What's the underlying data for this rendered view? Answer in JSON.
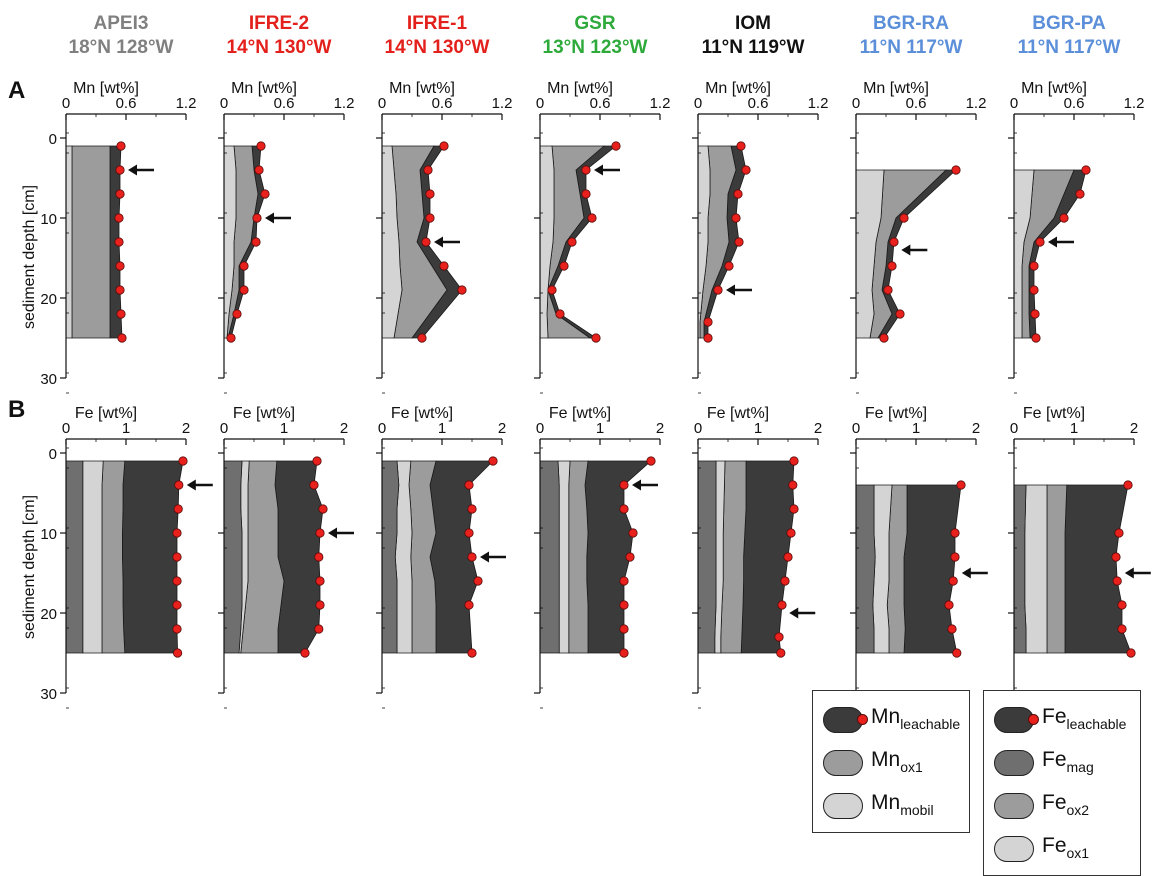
{
  "colors": {
    "leachable": "#3b3b3b",
    "ox": "#9c9c9c",
    "mobil": "#d4d4d4",
    "fe_mag": "#6f6f6f",
    "dot": "#e8211c"
  },
  "panel_labels": {
    "a": "A",
    "b": "B"
  },
  "y_axis_label": "sediment depth [cm]",
  "legend_mn": [
    {
      "base": "Mn",
      "sub": "leachable",
      "icon": "leachable-swatch-icon",
      "color": "#3b3b3b"
    },
    {
      "base": "Mn",
      "sub": "ox1",
      "icon": "ox1-swatch-icon",
      "color": "#9c9c9c"
    },
    {
      "base": "Mn",
      "sub": "mobil",
      "icon": "mobil-swatch-icon",
      "color": "#d4d4d4"
    }
  ],
  "legend_fe": [
    {
      "base": "Fe",
      "sub": "leachable",
      "icon": "leachable-swatch-icon",
      "color": "#3b3b3b"
    },
    {
      "base": "Fe",
      "sub": "mag",
      "icon": "mag-swatch-icon",
      "color": "#6f6f6f"
    },
    {
      "base": "Fe",
      "sub": "ox2",
      "icon": "ox2-swatch-icon",
      "color": "#9c9c9c"
    },
    {
      "base": "Fe",
      "sub": "ox1",
      "icon": "ox1-swatch-icon",
      "color": "#d4d4d4"
    }
  ],
  "chart_data": [
    {
      "type": "area",
      "panel": "A",
      "xlabel": "Mn [wt%]",
      "ylabel": "sediment depth [cm]",
      "xlim": [
        0,
        1.2
      ],
      "xticks": [
        "0",
        "0.6",
        "1.2"
      ],
      "ylim": [
        0,
        30
      ],
      "yticks": [
        "0",
        "10",
        "20",
        "30"
      ],
      "y_inverted": true,
      "sites": [
        {
          "name": "APEI3",
          "coords": "18°N 128°W",
          "color": "#808080",
          "depth": [
            1,
            4,
            7,
            10,
            13,
            16,
            19,
            22,
            25
          ],
          "mobil": [
            0.06,
            0.06,
            0.06,
            0.06,
            0.06,
            0.06,
            0.06,
            0.06,
            0.06
          ],
          "ox1": [
            0.44,
            0.44,
            0.44,
            0.44,
            0.44,
            0.44,
            0.44,
            0.44,
            0.44
          ],
          "leachable": [
            0.55,
            0.54,
            0.54,
            0.53,
            0.53,
            0.54,
            0.54,
            0.55,
            0.56
          ],
          "arrow_depth": 4
        },
        {
          "name": "IFRE-2",
          "coords": "14°N 130°W",
          "color": "#e3201b",
          "depth": [
            1,
            4,
            7,
            10,
            13,
            16,
            19,
            22,
            25
          ],
          "mobil": [
            0.1,
            0.12,
            0.12,
            0.12,
            0.1,
            0.1,
            0.08,
            0.05,
            0.03
          ],
          "ox1": [
            0.28,
            0.3,
            0.34,
            0.3,
            0.27,
            0.15,
            0.15,
            0.1,
            0.04
          ],
          "leachable": [
            0.37,
            0.35,
            0.41,
            0.33,
            0.32,
            0.2,
            0.2,
            0.13,
            0.07
          ],
          "arrow_depth": 10
        },
        {
          "name": "IFRE-1",
          "coords": "14°N 130°W",
          "color": "#e3201b",
          "depth": [
            1,
            4,
            7,
            10,
            13,
            16,
            19,
            25
          ],
          "mobil": [
            0.1,
            0.12,
            0.14,
            0.15,
            0.17,
            0.18,
            0.2,
            0.12
          ],
          "ox1": [
            0.52,
            0.38,
            0.4,
            0.42,
            0.35,
            0.5,
            0.65,
            0.3
          ],
          "leachable": [
            0.62,
            0.46,
            0.48,
            0.48,
            0.44,
            0.62,
            0.8,
            0.4
          ],
          "arrow_depth": 13
        },
        {
          "name": "GSR",
          "coords": "13°N 123°W",
          "color": "#2eaa3b",
          "depth": [
            1,
            4,
            7,
            10,
            13,
            16,
            19,
            22,
            25
          ],
          "mobil": [
            0.12,
            0.14,
            0.14,
            0.14,
            0.13,
            0.1,
            0.08,
            0.07,
            0.08
          ],
          "ox1": [
            0.64,
            0.36,
            0.4,
            0.44,
            0.26,
            0.18,
            0.08,
            0.16,
            0.5
          ],
          "leachable": [
            0.76,
            0.46,
            0.46,
            0.52,
            0.32,
            0.24,
            0.12,
            0.2,
            0.56
          ],
          "arrow_depth": 4
        },
        {
          "name": "IOM",
          "coords": "11°N 119°W",
          "color": "#111111",
          "depth": [
            1,
            4,
            7,
            10,
            13,
            16,
            19,
            23,
            25
          ],
          "mobil": [
            0.1,
            0.12,
            0.12,
            0.1,
            0.1,
            0.08,
            0.05,
            0.02,
            0.02
          ],
          "ox1": [
            0.33,
            0.38,
            0.3,
            0.29,
            0.31,
            0.24,
            0.14,
            0.06,
            0.06
          ],
          "leachable": [
            0.43,
            0.48,
            0.4,
            0.38,
            0.41,
            0.31,
            0.2,
            0.1,
            0.1
          ],
          "arrow_depth": 19
        },
        {
          "name": "BGR-RA",
          "coords": "11°N 117°W",
          "color": "#5b8fd9",
          "depth": [
            4,
            10,
            13,
            16,
            19,
            22,
            25
          ],
          "mobil": [
            0.28,
            0.25,
            0.2,
            0.18,
            0.16,
            0.18,
            0.14
          ],
          "ox1": [
            0.9,
            0.4,
            0.32,
            0.3,
            0.26,
            0.36,
            0.22
          ],
          "leachable": [
            1.0,
            0.48,
            0.38,
            0.36,
            0.32,
            0.44,
            0.28
          ],
          "arrow_depth": 14
        },
        {
          "name": "BGR-PA",
          "coords": "11°N 117°W",
          "color": "#5b8fd9",
          "depth": [
            4,
            7,
            10,
            13,
            16,
            19,
            22,
            25
          ],
          "mobil": [
            0.2,
            0.18,
            0.16,
            0.1,
            0.08,
            0.08,
            0.08,
            0.08
          ],
          "ox1": [
            0.6,
            0.5,
            0.4,
            0.2,
            0.15,
            0.15,
            0.15,
            0.16
          ],
          "leachable": [
            0.72,
            0.66,
            0.5,
            0.26,
            0.2,
            0.2,
            0.21,
            0.22
          ],
          "arrow_depth": 13
        }
      ]
    },
    {
      "type": "area",
      "panel": "B",
      "xlabel": "Fe [wt%]",
      "ylabel": "sediment depth [cm]",
      "xlim": [
        0,
        2
      ],
      "xticks": [
        "0",
        "1",
        "2"
      ],
      "ylim": [
        0,
        30
      ],
      "yticks": [
        "0",
        "10",
        "20",
        "30"
      ],
      "y_inverted": true,
      "sites": [
        {
          "name": "APEI3",
          "depth": [
            1,
            4,
            7,
            10,
            13,
            16,
            19,
            22,
            25
          ],
          "mag": [
            0.28,
            0.28,
            0.28,
            0.28,
            0.28,
            0.28,
            0.28,
            0.28,
            0.28
          ],
          "ox1": [
            0.62,
            0.6,
            0.6,
            0.6,
            0.6,
            0.6,
            0.6,
            0.6,
            0.6
          ],
          "ox2": [
            0.98,
            0.95,
            0.95,
            0.94,
            0.94,
            0.95,
            0.95,
            0.96,
            0.98
          ],
          "leachable": [
            1.95,
            1.88,
            1.87,
            1.85,
            1.85,
            1.85,
            1.85,
            1.85,
            1.86
          ],
          "arrow_depth": 4
        },
        {
          "name": "IFRE-2",
          "depth": [
            1,
            4,
            7,
            10,
            13,
            16,
            19,
            22,
            25
          ],
          "mag": [
            0.3,
            0.28,
            0.28,
            0.3,
            0.3,
            0.3,
            0.3,
            0.28,
            0.25
          ],
          "ox1": [
            0.42,
            0.4,
            0.4,
            0.4,
            0.4,
            0.4,
            0.36,
            0.32,
            0.28
          ],
          "ox2": [
            0.88,
            0.85,
            0.9,
            0.9,
            0.9,
            1.0,
            0.95,
            0.9,
            0.9
          ],
          "leachable": [
            1.55,
            1.5,
            1.65,
            1.6,
            1.58,
            1.6,
            1.6,
            1.58,
            1.35
          ],
          "arrow_depth": 10
        },
        {
          "name": "IFRE-1",
          "depth": [
            1,
            4,
            7,
            10,
            13,
            16,
            19,
            25
          ],
          "mag": [
            0.25,
            0.28,
            0.25,
            0.25,
            0.22,
            0.25,
            0.25,
            0.25
          ],
          "ox1": [
            0.48,
            0.45,
            0.48,
            0.5,
            0.48,
            0.5,
            0.5,
            0.5
          ],
          "ox2": [
            0.9,
            0.8,
            0.85,
            0.9,
            0.8,
            0.88,
            0.9,
            0.9
          ],
          "leachable": [
            1.85,
            1.45,
            1.5,
            1.45,
            1.5,
            1.6,
            1.45,
            1.5
          ],
          "arrow_depth": 13
        },
        {
          "name": "GSR",
          "depth": [
            1,
            4,
            7,
            10,
            13,
            16,
            19,
            22,
            25
          ],
          "mag": [
            0.3,
            0.32,
            0.32,
            0.32,
            0.32,
            0.32,
            0.32,
            0.32,
            0.32
          ],
          "ox1": [
            0.5,
            0.48,
            0.48,
            0.48,
            0.48,
            0.48,
            0.48,
            0.48,
            0.48
          ],
          "ox2": [
            0.8,
            0.75,
            0.78,
            0.8,
            0.78,
            0.78,
            0.8,
            0.8,
            0.8
          ],
          "leachable": [
            1.85,
            1.4,
            1.4,
            1.55,
            1.5,
            1.4,
            1.4,
            1.4,
            1.4
          ],
          "arrow_depth": 4
        },
        {
          "name": "IOM",
          "depth": [
            1,
            4,
            7,
            10,
            13,
            16,
            19,
            23,
            25
          ],
          "mag": [
            0.3,
            0.3,
            0.3,
            0.3,
            0.3,
            0.3,
            0.3,
            0.28,
            0.28
          ],
          "ox1": [
            0.45,
            0.44,
            0.43,
            0.42,
            0.42,
            0.42,
            0.4,
            0.38,
            0.38
          ],
          "ox2": [
            0.8,
            0.8,
            0.8,
            0.78,
            0.76,
            0.76,
            0.75,
            0.73,
            0.72
          ],
          "leachable": [
            1.6,
            1.58,
            1.6,
            1.55,
            1.5,
            1.45,
            1.4,
            1.35,
            1.38
          ],
          "arrow_depth": 20
        },
        {
          "name": "BGR-RA",
          "depth": [
            4,
            10,
            13,
            16,
            19,
            22,
            25
          ],
          "mag": [
            0.3,
            0.3,
            0.32,
            0.3,
            0.28,
            0.3,
            0.3
          ],
          "ox1": [
            0.6,
            0.55,
            0.55,
            0.55,
            0.52,
            0.55,
            0.55
          ],
          "ox2": [
            0.85,
            0.85,
            0.8,
            0.8,
            0.8,
            0.82,
            0.8
          ],
          "leachable": [
            1.75,
            1.65,
            1.65,
            1.62,
            1.55,
            1.6,
            1.68
          ],
          "arrow_depth": 15
        },
        {
          "name": "BGR-PA",
          "depth": [
            4,
            10,
            13,
            16,
            19,
            22,
            25
          ],
          "mag": [
            0.2,
            0.18,
            0.18,
            0.18,
            0.18,
            0.2,
            0.2
          ],
          "ox1": [
            0.55,
            0.55,
            0.55,
            0.55,
            0.55,
            0.55,
            0.55
          ],
          "ox2": [
            0.88,
            0.85,
            0.85,
            0.85,
            0.85,
            0.85,
            0.85
          ],
          "leachable": [
            1.9,
            1.75,
            1.7,
            1.72,
            1.8,
            1.8,
            1.95
          ],
          "arrow_depth": 15
        }
      ]
    }
  ]
}
